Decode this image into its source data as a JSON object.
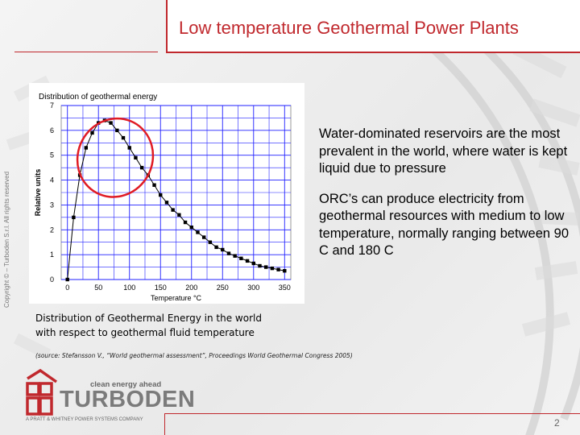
{
  "slide": {
    "title": "Low temperature Geothermal Power Plants",
    "copyright": "Copyright © – Turboden S.r.l. All rights reserved",
    "page_number": "2",
    "accent_color": "#c0282d"
  },
  "bullets": [
    "Water-dominated reservoirs are the most prevalent in the world, where water is kept liquid due to pressure",
    "ORC’s can produce electricity from geothermal resources with medium to low temperature, normally ranging between 90 C and 180 C"
  ],
  "caption": {
    "line1": "Distribution of Geothermal Energy in the world",
    "line2": "with respect to geothermal fluid temperature",
    "source": "(source: Stefansson V., “World geothermal assessment”, Proceedings World Geothermal Congress 2005)"
  },
  "logo": {
    "tagline": "clean energy ahead",
    "name": "TURBODEN",
    "subtitle": "A PRATT & WHITNEY POWER SYSTEMS COMPANY"
  },
  "chart_data": {
    "type": "line",
    "title": "Distribution of geothermal energy",
    "xlabel": "Temperature °C",
    "ylabel": "Relative units",
    "xlim": [
      -10,
      360
    ],
    "ylim": [
      0,
      7
    ],
    "xticks": [
      0,
      50,
      100,
      150,
      200,
      250,
      300,
      350
    ],
    "yticks": [
      0,
      1,
      2,
      3,
      4,
      5,
      6,
      7
    ],
    "grid": true,
    "line_color": "#000000",
    "grid_color": "#2020ff",
    "highlight_color": "#e01b24",
    "highlight_ellipse": {
      "cx": 77,
      "cy": 4.9,
      "rx": 60,
      "ry": 1.6,
      "rotation_deg": 28
    },
    "x": [
      0,
      10,
      20,
      30,
      40,
      50,
      60,
      70,
      80,
      90,
      100,
      110,
      120,
      130,
      140,
      150,
      160,
      170,
      180,
      190,
      200,
      210,
      220,
      230,
      240,
      250,
      260,
      270,
      280,
      290,
      300,
      310,
      320,
      330,
      340,
      350
    ],
    "y": [
      0.0,
      2.5,
      4.2,
      5.3,
      5.9,
      6.3,
      6.4,
      6.3,
      6.0,
      5.7,
      5.3,
      4.9,
      4.5,
      4.2,
      3.8,
      3.4,
      3.1,
      2.8,
      2.6,
      2.3,
      2.1,
      1.9,
      1.7,
      1.5,
      1.3,
      1.2,
      1.05,
      0.95,
      0.85,
      0.75,
      0.65,
      0.55,
      0.5,
      0.45,
      0.4,
      0.35
    ]
  }
}
